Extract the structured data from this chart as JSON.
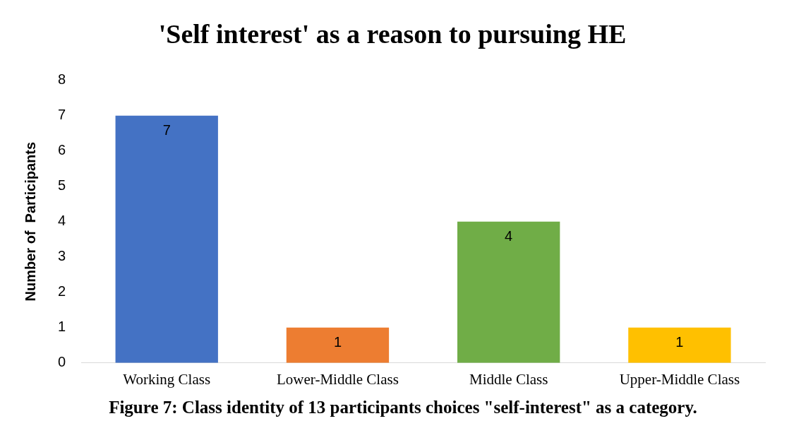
{
  "chart_data": {
    "type": "bar",
    "title": "'Self interest' as a reason to pursuing HE",
    "ylabel": "Number of  Participants",
    "categories": [
      "Working Class",
      "Lower-Middle Class",
      "Middle Class",
      "Upper-Middle Class"
    ],
    "values": [
      7,
      1,
      4,
      1
    ],
    "colors": [
      "#4472c4",
      "#ed7d31",
      "#70ad47",
      "#ffc000"
    ],
    "ylim": [
      0,
      8
    ],
    "yticks": [
      0,
      1,
      2,
      3,
      4,
      5,
      6,
      7,
      8
    ],
    "grid": false,
    "legend": false,
    "data_labels": true,
    "annotations": [
      "Figure 7: Class identity of 13 participants choices \"self-interest\" as a category."
    ]
  }
}
